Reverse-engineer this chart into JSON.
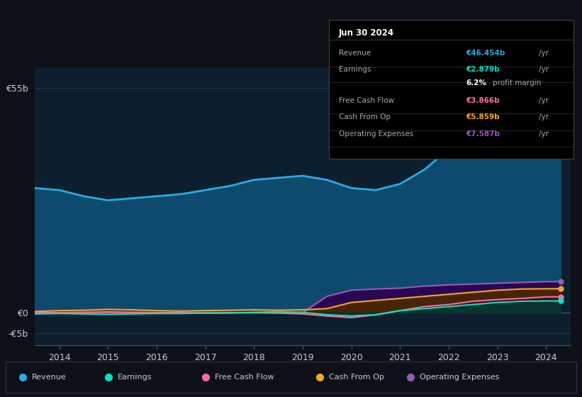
{
  "background_color": "#0d1117",
  "plot_bg_color": "#0d1e2e",
  "grid_color": "#1e3a4a",
  "years": [
    2013.5,
    2014,
    2014.5,
    2015,
    2015.5,
    2016,
    2016.5,
    2017,
    2017.5,
    2018,
    2018.5,
    2019,
    2019.5,
    2020,
    2020.5,
    2021,
    2021.5,
    2022,
    2022.5,
    2023,
    2023.5,
    2024,
    2024.3
  ],
  "revenue": [
    30.5,
    30.0,
    28.5,
    27.5,
    28.0,
    28.5,
    29.0,
    30.0,
    31.0,
    32.5,
    33.0,
    33.5,
    32.5,
    30.5,
    30.0,
    31.5,
    35.0,
    40.0,
    44.0,
    48.0,
    50.0,
    46.5,
    46.454
  ],
  "earnings": [
    -0.3,
    -0.2,
    -0.3,
    -0.4,
    -0.3,
    -0.2,
    -0.2,
    -0.1,
    -0.1,
    0.1,
    0.2,
    0.1,
    -0.5,
    -0.8,
    -0.5,
    0.5,
    1.0,
    1.5,
    2.0,
    2.5,
    2.8,
    2.879,
    2.879
  ],
  "free_cash_flow": [
    0.0,
    0.0,
    0.1,
    0.2,
    0.1,
    0.0,
    0.0,
    -0.1,
    0.0,
    0.0,
    -0.1,
    -0.3,
    -0.8,
    -1.2,
    -0.5,
    0.5,
    1.5,
    2.0,
    2.8,
    3.2,
    3.5,
    3.866,
    3.866
  ],
  "cash_from_op": [
    0.3,
    0.5,
    0.6,
    0.8,
    0.7,
    0.5,
    0.4,
    0.5,
    0.6,
    0.7,
    0.6,
    0.7,
    1.0,
    2.5,
    3.0,
    3.5,
    4.0,
    4.5,
    5.0,
    5.5,
    5.8,
    5.859,
    5.859
  ],
  "operating_expenses": [
    0.0,
    0.0,
    0.0,
    0.0,
    0.0,
    0.0,
    0.0,
    0.0,
    0.0,
    0.0,
    0.0,
    0.0,
    4.0,
    5.5,
    5.8,
    6.0,
    6.5,
    6.8,
    7.0,
    7.2,
    7.4,
    7.587,
    7.587
  ],
  "revenue_color": "#29abe2",
  "revenue_fill": "#0d4a6e",
  "earnings_color": "#00e5c3",
  "earnings_fill": "#003a30",
  "free_cash_flow_color": "#ff6b9d",
  "free_cash_flow_fill": "#4a0020",
  "cash_from_op_color": "#f5a623",
  "cash_from_op_fill": "#4a2800",
  "operating_expenses_color": "#9b59b6",
  "operating_expenses_fill": "#2d0050",
  "ylabel_55b": "€55b",
  "ylabel_0": "€0",
  "ylabel_n5b": "-€5b",
  "xtick_labels": [
    "2014",
    "2015",
    "2016",
    "2017",
    "2018",
    "2019",
    "2020",
    "2021",
    "2022",
    "2023",
    "2024"
  ],
  "xtick_values": [
    2014,
    2015,
    2016,
    2017,
    2018,
    2019,
    2020,
    2021,
    2022,
    2023,
    2024
  ],
  "ylim_min": -8,
  "ylim_max": 60,
  "legend_items": [
    "Revenue",
    "Earnings",
    "Free Cash Flow",
    "Cash From Op",
    "Operating Expenses"
  ],
  "legend_colors": [
    "#29abe2",
    "#00e5c3",
    "#ff6b9d",
    "#f5a623",
    "#9b59b6"
  ],
  "tooltip_title": "Jun 30 2024",
  "tooltip_rows": [
    {
      "label": "Revenue",
      "value": "€46.454b /yr",
      "color": "#29abe2"
    },
    {
      "label": "Earnings",
      "value": "€2.879b /yr",
      "color": "#00e5c3"
    },
    {
      "label": "",
      "value": "6.2% profit margin",
      "color": "#ffffff"
    },
    {
      "label": "Free Cash Flow",
      "value": "€3.866b /yr",
      "color": "#ff6b9d"
    },
    {
      "label": "Cash From Op",
      "value": "€5.859b /yr",
      "color": "#f5a623"
    },
    {
      "label": "Operating Expenses",
      "value": "€7.587b /yr",
      "color": "#9b59b6"
    }
  ]
}
